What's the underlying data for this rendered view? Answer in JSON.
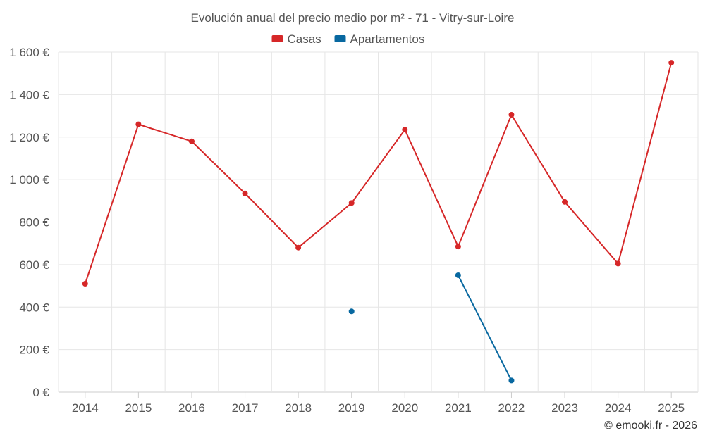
{
  "chart_data": {
    "type": "line",
    "title": "Evolución anual del precio medio por m² - 71 - Vitry-sur-Loire",
    "categories": [
      "2014",
      "2015",
      "2016",
      "2017",
      "2018",
      "2019",
      "2020",
      "2021",
      "2022",
      "2023",
      "2024",
      "2025"
    ],
    "series": [
      {
        "name": "Casas",
        "color": "#d62728",
        "values": [
          510,
          1260,
          1180,
          935,
          680,
          890,
          1235,
          685,
          1305,
          895,
          605,
          1550
        ]
      },
      {
        "name": "Apartamentos",
        "color": "#0868a0",
        "values": [
          null,
          null,
          null,
          null,
          null,
          380,
          null,
          550,
          55,
          null,
          null,
          null
        ]
      }
    ],
    "ylim": [
      0,
      1600
    ],
    "yticks": [
      0,
      200,
      400,
      600,
      800,
      1000,
      1200,
      1400,
      1600
    ],
    "ytick_labels": [
      "0 €",
      "200 €",
      "400 €",
      "600 €",
      "800 €",
      "1 000 €",
      "1 200 €",
      "1 400 €",
      "1 600 €"
    ],
    "xlabel": "",
    "ylabel": "",
    "legend_position": "top-center",
    "grid": true
  },
  "credit": "© emooki.fr - 2026"
}
